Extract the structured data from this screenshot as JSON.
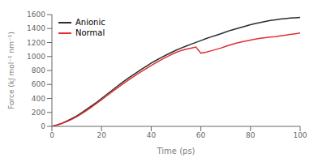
{
  "chart_data": {
    "type": "line",
    "title": "",
    "xlabel": "Time (ps)",
    "ylabel": "Force (kJ mol⁻¹ nm⁻¹)",
    "x": [
      0,
      2,
      4,
      6,
      8,
      10,
      12,
      14,
      16,
      18,
      20,
      22,
      24,
      26,
      28,
      30,
      32,
      34,
      36,
      38,
      40,
      42,
      44,
      46,
      48,
      50,
      52,
      54,
      56,
      58,
      60,
      62,
      64,
      66,
      68,
      70,
      72,
      74,
      76,
      78,
      80,
      82,
      84,
      86,
      88,
      90,
      92,
      94,
      96,
      98,
      100
    ],
    "series": [
      {
        "name": "Anionic",
        "color": "#2d2d2d",
        "values": [
          0,
          20,
          45,
          75,
          110,
          150,
          195,
          245,
          295,
          345,
          400,
          455,
          510,
          565,
          618,
          670,
          720,
          768,
          815,
          860,
          905,
          945,
          985,
          1020,
          1055,
          1090,
          1120,
          1148,
          1175,
          1202,
          1228,
          1255,
          1280,
          1302,
          1325,
          1350,
          1375,
          1395,
          1415,
          1435,
          1455,
          1472,
          1488,
          1502,
          1515,
          1525,
          1535,
          1543,
          1550,
          1555,
          1560
        ]
      },
      {
        "name": "Normal",
        "color": "#e03030",
        "values": [
          0,
          18,
          40,
          68,
          100,
          138,
          180,
          228,
          278,
          330,
          382,
          435,
          488,
          540,
          592,
          642,
          692,
          738,
          783,
          828,
          872,
          912,
          952,
          990,
          1025,
          1058,
          1085,
          1105,
          1120,
          1135,
          1048,
          1060,
          1080,
          1100,
          1120,
          1145,
          1168,
          1188,
          1205,
          1220,
          1235,
          1248,
          1260,
          1270,
          1278,
          1285,
          1295,
          1305,
          1315,
          1325,
          1335
        ]
      }
    ],
    "xlim": [
      0,
      100
    ],
    "ylim": [
      0,
      1600
    ],
    "xticks": [
      0,
      20,
      40,
      60,
      80,
      100
    ],
    "yticks": [
      0,
      200,
      400,
      600,
      800,
      1000,
      1200,
      1400,
      1600
    ],
    "legend": "upper left"
  }
}
